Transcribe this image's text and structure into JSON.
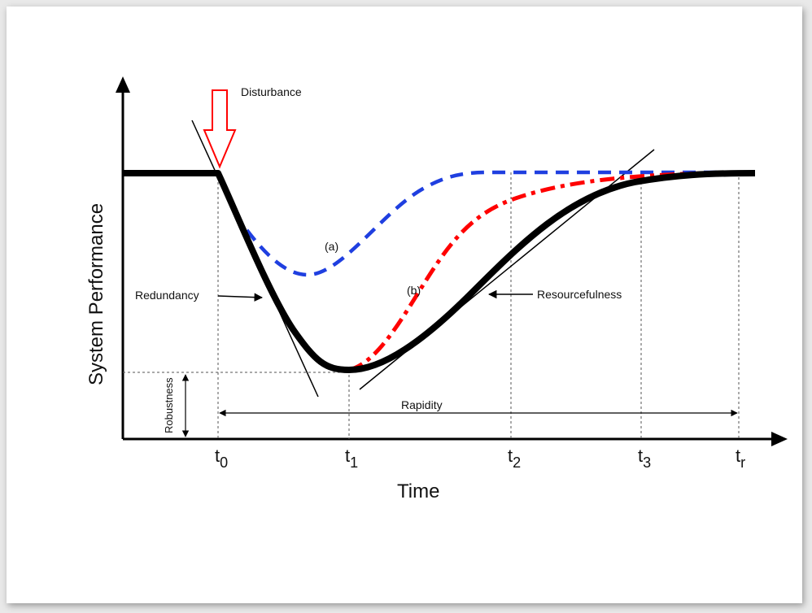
{
  "labels": {
    "y_axis": "System Performance",
    "x_axis": "Time",
    "disturbance": "Disturbance",
    "redundancy": "Redundancy",
    "resourcefulness": "Resourcefulness",
    "rapidity": "Rapidity",
    "robustness": "Robustness",
    "curve_a": "(a)",
    "curve_b": "(b)"
  },
  "ticks": [
    {
      "base": "t",
      "sub": "0"
    },
    {
      "base": "t",
      "sub": "1"
    },
    {
      "base": "t",
      "sub": "2"
    },
    {
      "base": "t",
      "sub": "3"
    },
    {
      "base": "t",
      "sub": "r"
    }
  ],
  "colors": {
    "baseline_curve": "#000000",
    "curve_a": "#1f3fe0",
    "curve_b": "#ff0000",
    "disturbance_arrow": "#ff0000"
  }
}
